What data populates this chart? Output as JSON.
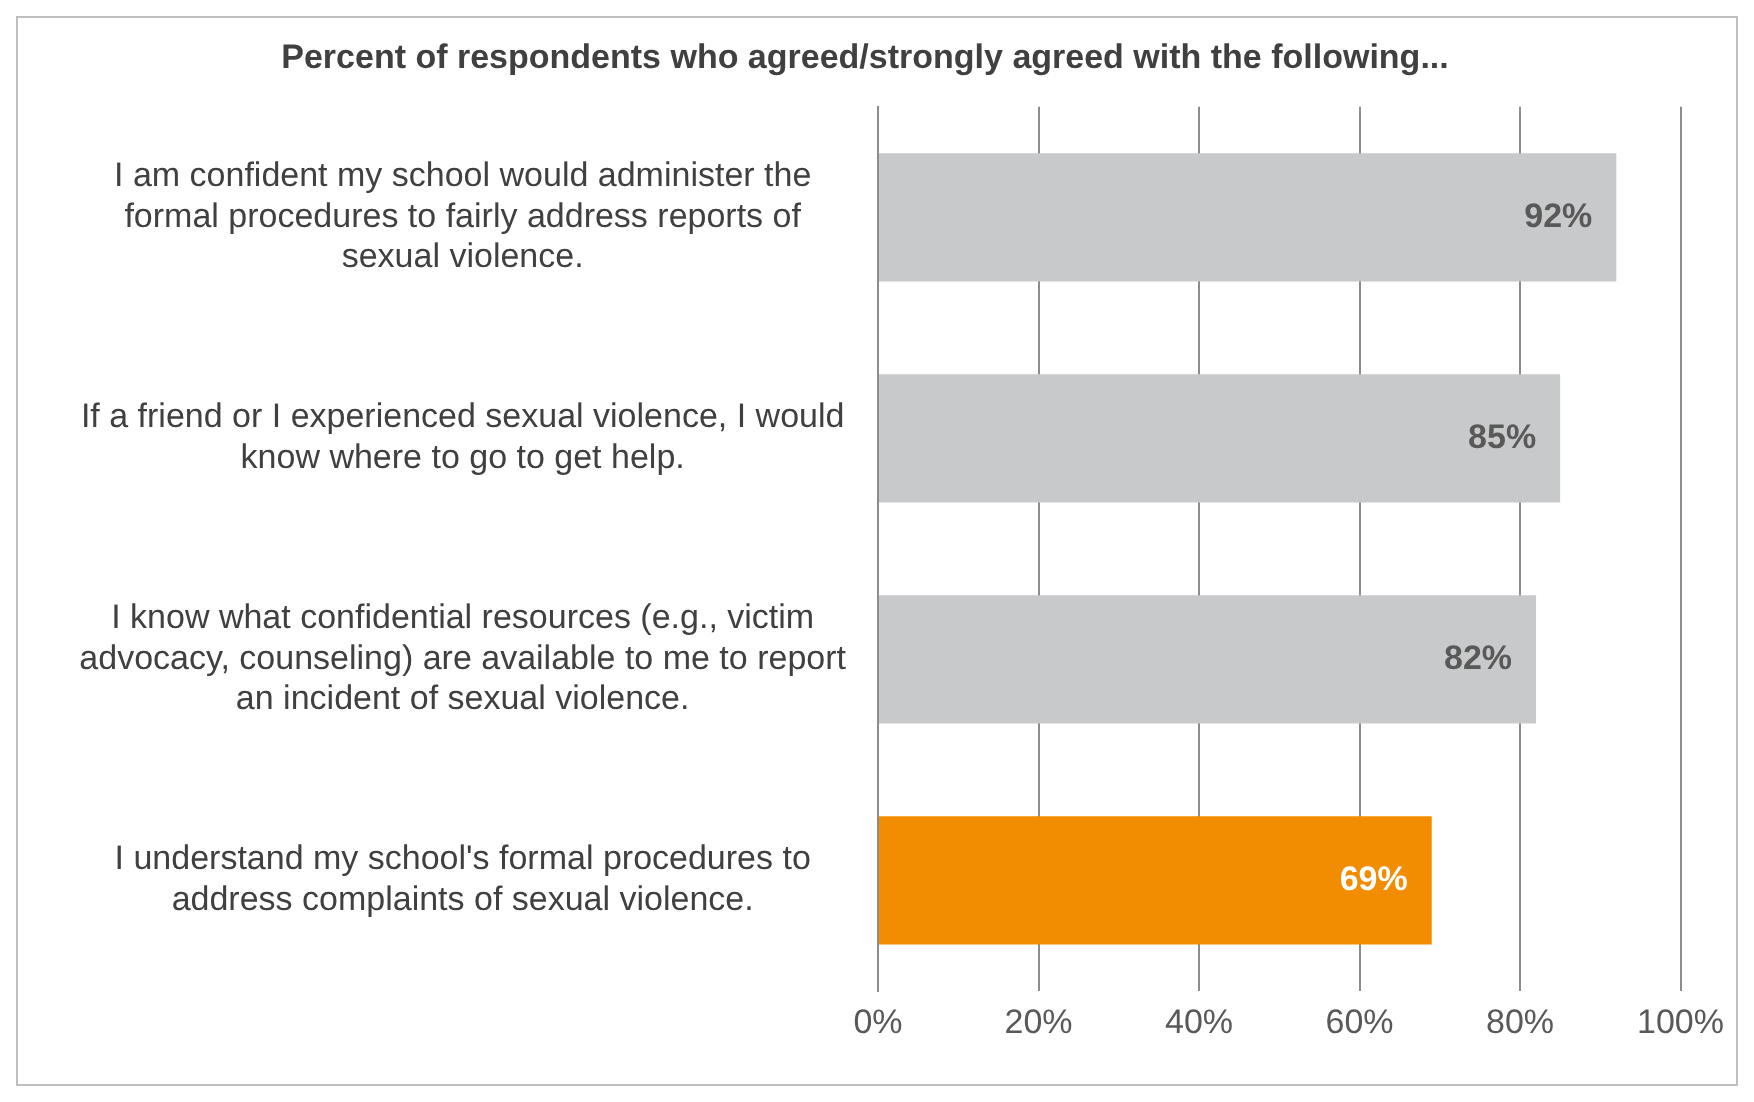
{
  "chart_data": {
    "type": "bar",
    "orientation": "horizontal",
    "title": "Percent of respondents who agreed/strongly agreed with the following...",
    "categories": [
      "I am confident my school would administer the formal procedures to fairly address reports of sexual violence.",
      "If a friend or I experienced sexual violence, I would know where to go to get help.",
      "I know what confidential resources (e.g., victim advocacy, counseling) are available to me to report an incident of sexual violence.",
      "I understand my school's formal procedures to address complaints of sexual violence."
    ],
    "values": [
      92,
      85,
      82,
      69
    ],
    "colors": [
      "#c8c9cb",
      "#c8c9cb",
      "#c8c9cb",
      "#f28c00"
    ],
    "value_labels": [
      "92%",
      "85%",
      "82%",
      "69%"
    ],
    "xlim": [
      0,
      100
    ],
    "xticks": [
      {
        "value": 0,
        "label": "0%"
      },
      {
        "value": 20,
        "label": "20%"
      },
      {
        "value": 40,
        "label": "40%"
      },
      {
        "value": 60,
        "label": "60%"
      },
      {
        "value": 80,
        "label": "80%"
      },
      {
        "value": 100,
        "label": "100%"
      }
    ],
    "grid": "x",
    "legend": false
  }
}
